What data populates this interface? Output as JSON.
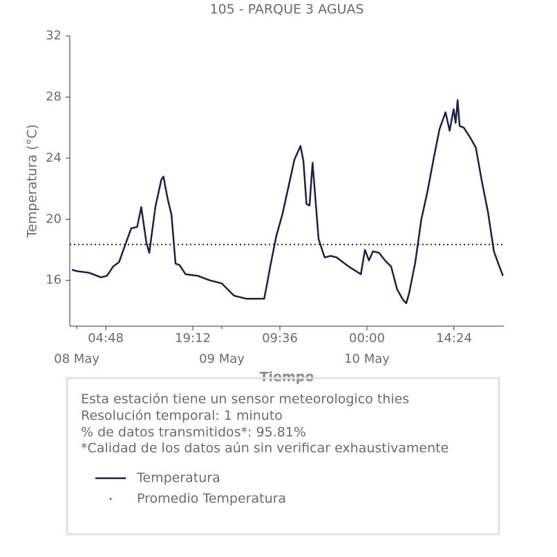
{
  "chart_data": {
    "type": "line",
    "title": "105 - PARQUE 3 AGUAS",
    "x_label": "Tiempo",
    "y_label": "Temperatura (°C)",
    "x": [
      "07 May 23:12",
      "08 May 00:00",
      "08 May 02:00",
      "08 May 04:00",
      "08 May 05:00",
      "08 May 06:00",
      "08 May 07:00",
      "08 May 08:00",
      "08 May 09:00",
      "08 May 10:00",
      "08 May 10:40",
      "08 May 11:30",
      "08 May 12:00",
      "08 May 13:00",
      "08 May 14:00",
      "08 May 14:20",
      "08 May 15:00",
      "08 May 15:40",
      "08 May 16:20",
      "08 May 17:00",
      "08 May 18:00",
      "08 May 20:00",
      "08 May 22:00",
      "09 May 00:00",
      "09 May 02:00",
      "09 May 04:00",
      "09 May 06:00",
      "09 May 07:00",
      "09 May 07:30",
      "09 May 08:00",
      "09 May 09:00",
      "09 May 10:00",
      "09 May 11:00",
      "09 May 12:00",
      "09 May 13:00",
      "09 May 13:30",
      "09 May 14:00",
      "09 May 14:30",
      "09 May 15:00",
      "09 May 16:00",
      "09 May 17:00",
      "09 May 18:00",
      "09 May 19:00",
      "09 May 21:00",
      "09 May 23:00",
      "09 May 23:40",
      "10 May 00:20",
      "10 May 01:00",
      "10 May 02:00",
      "10 May 03:00",
      "10 May 04:00",
      "10 May 05:00",
      "10 May 06:00",
      "10 May 06:30",
      "10 May 07:00",
      "10 May 08:00",
      "10 May 09:00",
      "10 May 10:00",
      "10 May 11:00",
      "10 May 12:00",
      "10 May 13:00",
      "10 May 13:40",
      "10 May 14:20",
      "10 May 14:40",
      "10 May 15:00",
      "10 May 15:20",
      "10 May 16:00",
      "10 May 17:00",
      "10 May 18:00",
      "10 May 19:00",
      "10 May 20:00",
      "10 May 21:00",
      "10 May 22:00",
      "10 May 22:30"
    ],
    "series": [
      {
        "name": "Temperatura",
        "color": "#1f2041",
        "values": [
          16.7,
          16.6,
          16.5,
          16.2,
          16.3,
          16.9,
          17.2,
          18.3,
          19.4,
          19.5,
          20.8,
          18.5,
          17.8,
          20.8,
          22.6,
          22.8,
          21.4,
          20.3,
          17.1,
          17.0,
          16.4,
          16.3,
          16.0,
          15.8,
          15.0,
          14.8,
          14.8,
          14.8,
          15.8,
          16.9,
          18.9,
          20.3,
          22.1,
          23.9,
          24.8,
          23.8,
          21.0,
          20.9,
          23.7,
          18.7,
          17.5,
          17.6,
          17.5,
          16.9,
          16.4,
          18.0,
          17.3,
          17.9,
          17.8,
          17.3,
          16.9,
          15.4,
          14.7,
          14.5,
          15.2,
          17.2,
          20.0,
          21.8,
          23.9,
          25.9,
          27.0,
          25.8,
          27.2,
          26.3,
          27.8,
          26.1,
          26.0,
          25.4,
          24.7,
          22.5,
          20.5,
          17.9,
          16.8,
          16.3
        ]
      }
    ],
    "average": {
      "name": "Promedio Temperatura",
      "value": 18.35,
      "color": "#1f2041"
    },
    "xlim": [
      "07 May 22:51",
      "10 May 22:38"
    ],
    "xticks": [
      {
        "value": "08 May 04:48",
        "label": "04:48"
      },
      {
        "value": "08 May 19:12",
        "label": "19:12"
      },
      {
        "value": "09 May 09:36",
        "label": "09:36"
      },
      {
        "value": "10 May 00:00",
        "label": "00:00"
      },
      {
        "value": "10 May 14:24",
        "label": "14:24"
      }
    ],
    "xticks_minor": [
      {
        "value": "08 May 00:00",
        "label": "08 May"
      },
      {
        "value": "09 May 00:00",
        "label": "09 May"
      },
      {
        "value": "10 May 00:00",
        "label": "10 May"
      }
    ],
    "ylim": [
      13,
      32
    ],
    "yticks": [
      16,
      20,
      24,
      28,
      32
    ],
    "info_box": [
      "Esta estación tiene un sensor meteorologico thies",
      "Resolución temporal: 1 minuto",
      "% de datos transmitidos*: 95.81%",
      "*Calidad de los datos aún sin verificar exhaustivamente"
    ]
  }
}
